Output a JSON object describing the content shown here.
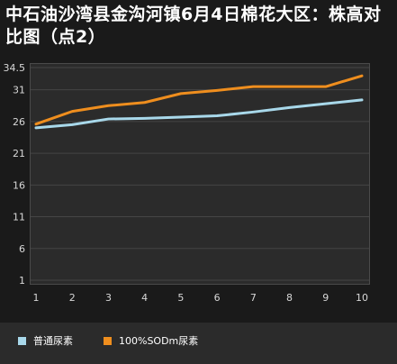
{
  "chart_data": {
    "type": "line",
    "title": "中石油沙湾县金沟河镇6月4日棉花大区：株高对比图（点2）",
    "xlabel": "",
    "ylabel": "",
    "x": [
      1,
      2,
      3,
      4,
      5,
      6,
      7,
      8,
      9,
      10
    ],
    "ylim": [
      1,
      34.5
    ],
    "yticks": [
      1,
      6,
      11,
      16,
      21,
      26,
      31,
      34.5
    ],
    "ytick_labels": [
      "1",
      "6",
      "11",
      "16",
      "21",
      "26",
      "31",
      "34.5"
    ],
    "grid": true,
    "legend": "bottom-left",
    "series": [
      {
        "name": "普通尿素",
        "color": "#a8d8ea",
        "values": [
          25.0,
          25.5,
          26.4,
          26.5,
          26.7,
          26.9,
          27.5,
          28.2,
          28.8,
          29.4
        ]
      },
      {
        "name": "100%SODm尿素",
        "color": "#ef8e1e",
        "values": [
          25.6,
          27.6,
          28.5,
          29.0,
          30.4,
          30.9,
          31.5,
          31.5,
          31.5,
          33.2
        ]
      }
    ]
  }
}
